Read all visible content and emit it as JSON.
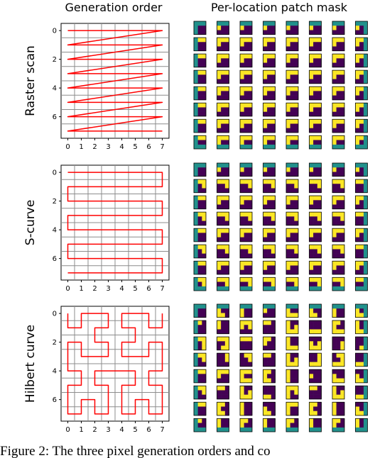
{
  "titles": {
    "left": "Generation order",
    "right": "Per-location patch mask"
  },
  "caption": "Figure 2: The three pixel generation orders and co",
  "colors": {
    "path": "#ff0000",
    "grid": "#8c8c8c",
    "mask_purple": "#440154",
    "mask_teal": "#21918c",
    "mask_yellow": "#fde725"
  },
  "chart_data": [
    {
      "type": "line",
      "row_label": "Raster scan",
      "xticks": [
        "0",
        "1",
        "2",
        "3",
        "4",
        "5",
        "6",
        "7"
      ],
      "yticks": [
        "0",
        "2",
        "4",
        "6"
      ],
      "xlim": [
        -0.5,
        7.5
      ],
      "ylim": [
        7.5,
        -0.5
      ],
      "grid": true,
      "order": [
        [
          0,
          0
        ],
        [
          1,
          0
        ],
        [
          2,
          0
        ],
        [
          3,
          0
        ],
        [
          4,
          0
        ],
        [
          5,
          0
        ],
        [
          6,
          0
        ],
        [
          7,
          0
        ],
        [
          0,
          1
        ],
        [
          1,
          1
        ],
        [
          2,
          1
        ],
        [
          3,
          1
        ],
        [
          4,
          1
        ],
        [
          5,
          1
        ],
        [
          6,
          1
        ],
        [
          7,
          1
        ],
        [
          0,
          2
        ],
        [
          1,
          2
        ],
        [
          2,
          2
        ],
        [
          3,
          2
        ],
        [
          4,
          2
        ],
        [
          5,
          2
        ],
        [
          6,
          2
        ],
        [
          7,
          2
        ],
        [
          0,
          3
        ],
        [
          1,
          3
        ],
        [
          2,
          3
        ],
        [
          3,
          3
        ],
        [
          4,
          3
        ],
        [
          5,
          3
        ],
        [
          6,
          3
        ],
        [
          7,
          3
        ],
        [
          0,
          4
        ],
        [
          1,
          4
        ],
        [
          2,
          4
        ],
        [
          3,
          4
        ],
        [
          4,
          4
        ],
        [
          5,
          4
        ],
        [
          6,
          4
        ],
        [
          7,
          4
        ],
        [
          0,
          5
        ],
        [
          1,
          5
        ],
        [
          2,
          5
        ],
        [
          3,
          5
        ],
        [
          4,
          5
        ],
        [
          5,
          5
        ],
        [
          6,
          5
        ],
        [
          7,
          5
        ],
        [
          0,
          6
        ],
        [
          1,
          6
        ],
        [
          2,
          6
        ],
        [
          3,
          6
        ],
        [
          4,
          6
        ],
        [
          5,
          6
        ],
        [
          6,
          6
        ],
        [
          7,
          6
        ],
        [
          0,
          7
        ],
        [
          1,
          7
        ],
        [
          2,
          7
        ],
        [
          3,
          7
        ],
        [
          4,
          7
        ],
        [
          5,
          7
        ],
        [
          6,
          7
        ],
        [
          7,
          7
        ]
      ]
    },
    {
      "type": "line",
      "row_label": "S-curve",
      "xticks": [
        "0",
        "1",
        "2",
        "3",
        "4",
        "5",
        "6",
        "7"
      ],
      "yticks": [
        "0",
        "2",
        "4",
        "6"
      ],
      "xlim": [
        -0.5,
        7.5
      ],
      "ylim": [
        7.5,
        -0.5
      ],
      "grid": true,
      "order": [
        [
          0,
          0
        ],
        [
          1,
          0
        ],
        [
          2,
          0
        ],
        [
          3,
          0
        ],
        [
          4,
          0
        ],
        [
          5,
          0
        ],
        [
          6,
          0
        ],
        [
          7,
          0
        ],
        [
          7,
          1
        ],
        [
          6,
          1
        ],
        [
          5,
          1
        ],
        [
          4,
          1
        ],
        [
          3,
          1
        ],
        [
          2,
          1
        ],
        [
          1,
          1
        ],
        [
          0,
          1
        ],
        [
          0,
          2
        ],
        [
          1,
          2
        ],
        [
          2,
          2
        ],
        [
          3,
          2
        ],
        [
          4,
          2
        ],
        [
          5,
          2
        ],
        [
          6,
          2
        ],
        [
          7,
          2
        ],
        [
          7,
          3
        ],
        [
          6,
          3
        ],
        [
          5,
          3
        ],
        [
          4,
          3
        ],
        [
          3,
          3
        ],
        [
          2,
          3
        ],
        [
          1,
          3
        ],
        [
          0,
          3
        ],
        [
          0,
          4
        ],
        [
          1,
          4
        ],
        [
          2,
          4
        ],
        [
          3,
          4
        ],
        [
          4,
          4
        ],
        [
          5,
          4
        ],
        [
          6,
          4
        ],
        [
          7,
          4
        ],
        [
          7,
          5
        ],
        [
          6,
          5
        ],
        [
          5,
          5
        ],
        [
          4,
          5
        ],
        [
          3,
          5
        ],
        [
          2,
          5
        ],
        [
          1,
          5
        ],
        [
          0,
          5
        ],
        [
          0,
          6
        ],
        [
          1,
          6
        ],
        [
          2,
          6
        ],
        [
          3,
          6
        ],
        [
          4,
          6
        ],
        [
          5,
          6
        ],
        [
          6,
          6
        ],
        [
          7,
          6
        ],
        [
          7,
          7
        ],
        [
          6,
          7
        ],
        [
          5,
          7
        ],
        [
          4,
          7
        ],
        [
          3,
          7
        ],
        [
          2,
          7
        ],
        [
          1,
          7
        ],
        [
          0,
          7
        ]
      ]
    },
    {
      "type": "line",
      "row_label": "Hilbert curve",
      "xticks": [
        "0",
        "1",
        "2",
        "3",
        "4",
        "5",
        "6",
        "7"
      ],
      "yticks": [
        "0",
        "2",
        "4",
        "6"
      ],
      "xlim": [
        -0.5,
        7.5
      ],
      "ylim": [
        7.5,
        -0.5
      ],
      "grid": true,
      "order": [
        [
          0,
          0
        ],
        [
          0,
          1
        ],
        [
          1,
          1
        ],
        [
          1,
          0
        ],
        [
          2,
          0
        ],
        [
          3,
          0
        ],
        [
          3,
          1
        ],
        [
          2,
          1
        ],
        [
          2,
          2
        ],
        [
          3,
          2
        ],
        [
          3,
          3
        ],
        [
          2,
          3
        ],
        [
          1,
          3
        ],
        [
          1,
          2
        ],
        [
          0,
          2
        ],
        [
          0,
          3
        ],
        [
          0,
          4
        ],
        [
          1,
          4
        ],
        [
          1,
          5
        ],
        [
          0,
          5
        ],
        [
          0,
          6
        ],
        [
          0,
          7
        ],
        [
          1,
          7
        ],
        [
          1,
          6
        ],
        [
          2,
          6
        ],
        [
          2,
          7
        ],
        [
          3,
          7
        ],
        [
          3,
          6
        ],
        [
          3,
          5
        ],
        [
          2,
          5
        ],
        [
          2,
          4
        ],
        [
          3,
          4
        ],
        [
          4,
          4
        ],
        [
          5,
          4
        ],
        [
          5,
          5
        ],
        [
          4,
          5
        ],
        [
          4,
          6
        ],
        [
          4,
          7
        ],
        [
          5,
          7
        ],
        [
          5,
          6
        ],
        [
          6,
          6
        ],
        [
          6,
          7
        ],
        [
          7,
          7
        ],
        [
          7,
          6
        ],
        [
          7,
          5
        ],
        [
          6,
          5
        ],
        [
          6,
          4
        ],
        [
          7,
          4
        ],
        [
          7,
          3
        ],
        [
          7,
          2
        ],
        [
          6,
          2
        ],
        [
          6,
          3
        ],
        [
          5,
          3
        ],
        [
          4,
          3
        ],
        [
          4,
          2
        ],
        [
          5,
          2
        ],
        [
          5,
          1
        ],
        [
          4,
          1
        ],
        [
          4,
          0
        ],
        [
          5,
          0
        ],
        [
          6,
          0
        ],
        [
          6,
          1
        ],
        [
          7,
          1
        ],
        [
          7,
          0
        ]
      ]
    }
  ]
}
